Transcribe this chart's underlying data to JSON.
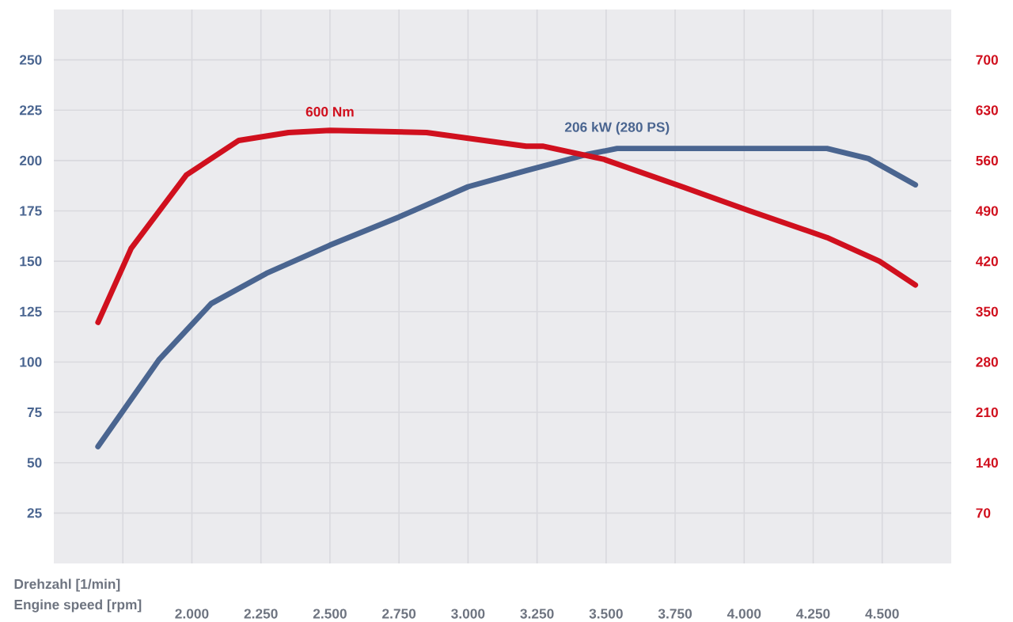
{
  "chart_data": {
    "type": "line",
    "xlabel": "Engine speed [rpm]",
    "annotations": [
      "Drehzahl [1/min]"
    ],
    "xlim": [
      1500,
      4750
    ],
    "ylim": [
      0,
      275
    ],
    "y2lim": [
      0,
      770
    ],
    "xticks": [
      {
        "value": 1750,
        "label": null
      },
      {
        "value": 2000,
        "label": "2.000"
      },
      {
        "value": 2250,
        "label": "2.250"
      },
      {
        "value": 2500,
        "label": "2.500"
      },
      {
        "value": 2750,
        "label": "2.750"
      },
      {
        "value": 3000,
        "label": "3.000"
      },
      {
        "value": 3250,
        "label": "3.250"
      },
      {
        "value": 3500,
        "label": "3.500"
      },
      {
        "value": 3750,
        "label": "3.750"
      },
      {
        "value": 4000,
        "label": "4.000"
      },
      {
        "value": 4250,
        "label": "4.250"
      },
      {
        "value": 4500,
        "label": "4.500"
      }
    ],
    "yticks": [
      25,
      50,
      75,
      100,
      125,
      150,
      175,
      200,
      225,
      250
    ],
    "y2ticks": [
      70,
      140,
      210,
      280,
      350,
      420,
      490,
      560,
      630,
      700
    ],
    "grid": true,
    "marker": "none",
    "line_style": "solid",
    "series": [
      {
        "name": "206 kW (280 PS)",
        "color": "#4a6590",
        "x": [
          1660,
          1880,
          2070,
          2270,
          2500,
          2750,
          3000,
          3210,
          3430,
          3540,
          4060,
          4300,
          4450,
          4620
        ],
        "values": [
          58,
          101,
          129,
          144,
          158,
          172,
          187,
          195,
          203,
          206,
          206,
          206,
          201,
          188
        ]
      },
      {
        "name": "600 Nm",
        "color": "#d0101e",
        "axis": "y2",
        "x": [
          1660,
          1780,
          1980,
          2170,
          2350,
          2500,
          2850,
          3210,
          3270,
          3490,
          3780,
          4020,
          4300,
          4490,
          4620
        ],
        "values": [
          335,
          438,
          540,
          588,
          599,
          602,
          599,
          580,
          580,
          562,
          523,
          490,
          453,
          420,
          387
        ]
      }
    ]
  }
}
